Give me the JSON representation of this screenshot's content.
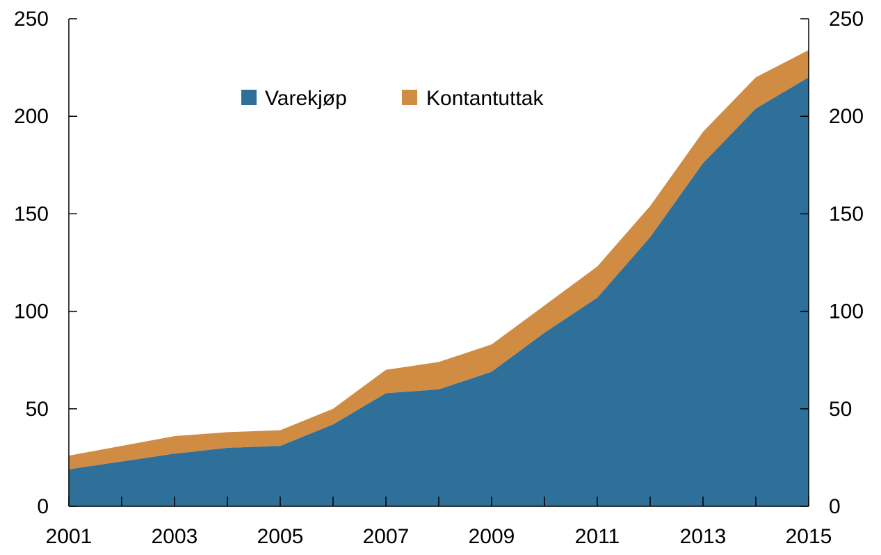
{
  "chart_data": {
    "type": "area",
    "stacked": true,
    "x": [
      2001,
      2002,
      2003,
      2004,
      2005,
      2006,
      2007,
      2008,
      2009,
      2010,
      2011,
      2012,
      2013,
      2014,
      2015
    ],
    "x_tick_labels": [
      "2001",
      "2003",
      "2005",
      "2007",
      "2009",
      "2011",
      "2013",
      "2015"
    ],
    "xlim": [
      2001,
      2015
    ],
    "ylim": [
      0,
      250
    ],
    "y_ticks": [
      0,
      50,
      100,
      150,
      200,
      250
    ],
    "y_tick_labels_left": [
      "0",
      "50",
      "100",
      "150",
      "200",
      "250"
    ],
    "y_tick_labels_right": [
      "0",
      "50",
      "100",
      "150",
      "200",
      "250"
    ],
    "grid": false,
    "legend_position": "top-center",
    "series": [
      {
        "name": "Varekjøp",
        "color": "#2e7099",
        "values": [
          19,
          23,
          27,
          30,
          31,
          42,
          58,
          60,
          69,
          89,
          107,
          138,
          176,
          204,
          220
        ]
      },
      {
        "name": "Kontantuttak",
        "color": "#d08c43",
        "values": [
          7,
          8,
          9,
          8,
          8,
          8,
          12,
          14,
          14,
          14,
          16,
          16,
          16,
          16,
          14
        ]
      }
    ]
  }
}
